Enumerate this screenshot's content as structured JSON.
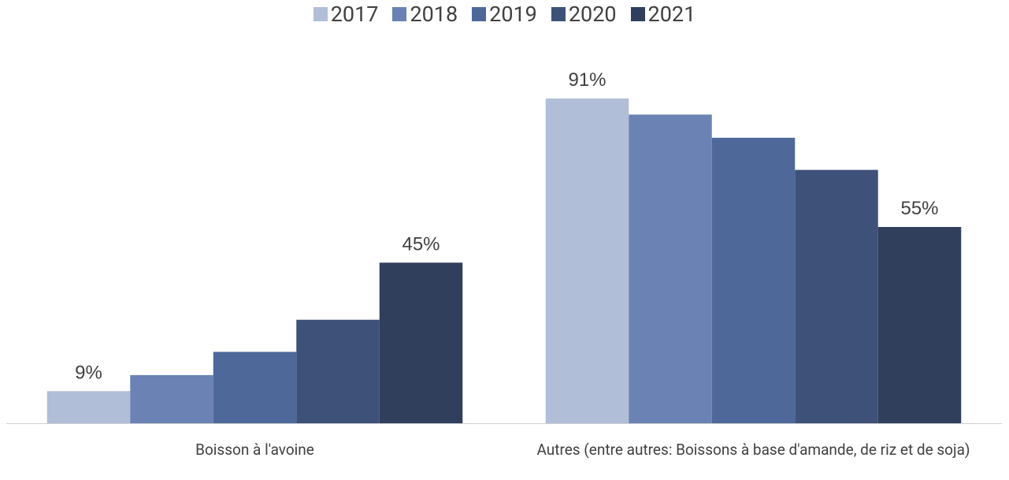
{
  "chart_data": {
    "type": "bar",
    "categories": [
      "Boisson à l'avoine",
      "Autres (entre autres: Boissons à base d'amande, de riz et de soja)"
    ],
    "series": [
      {
        "name": "2017",
        "color": "#b0bed8",
        "values": [
          9,
          91
        ],
        "value_labels": [
          "9%",
          "91%"
        ]
      },
      {
        "name": "2018",
        "color": "#6a82b4",
        "values": [
          13.5,
          86.5
        ]
      },
      {
        "name": "2019",
        "color": "#4e6899",
        "values": [
          20,
          80
        ]
      },
      {
        "name": "2020",
        "color": "#3e5179",
        "values": [
          29,
          71
        ]
      },
      {
        "name": "2021",
        "color": "#2f3f5c",
        "values": [
          45,
          55
        ],
        "value_labels": [
          "45%",
          "55%"
        ]
      }
    ],
    "legend": "top"
  }
}
